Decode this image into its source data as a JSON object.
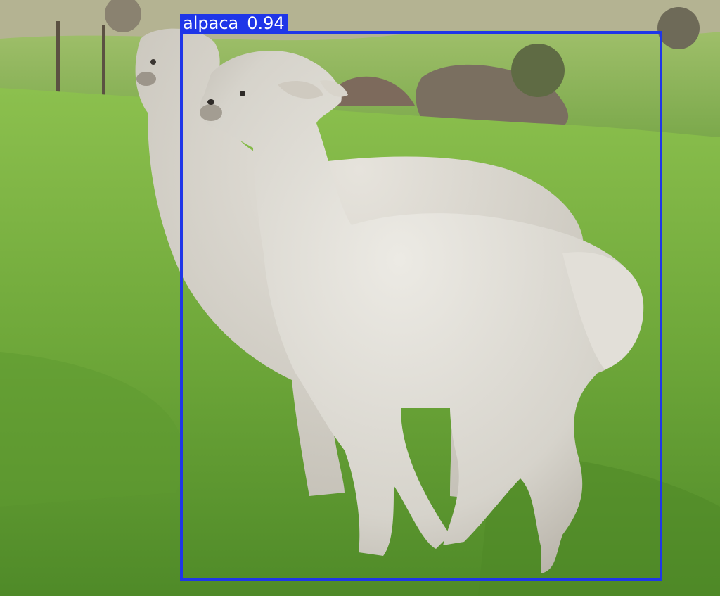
{
  "detection": {
    "label": "alpaca",
    "score": "0.94",
    "box_color": "#1f36e8"
  }
}
